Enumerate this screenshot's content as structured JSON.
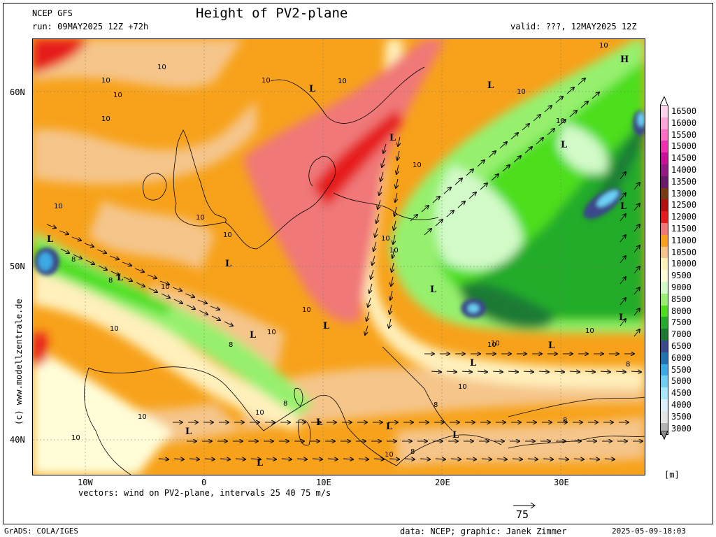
{
  "header": {
    "model": "NCEP GFS",
    "run": "run: 09MAY2025 12Z +72h",
    "title": "Height of PV2-plane",
    "valid": "valid: ???, 12MAY2025 12Z"
  },
  "axes": {
    "lat_ticks": [
      "60N",
      "50N",
      "40N"
    ],
    "lon_ticks": [
      "10W",
      "0",
      "10E",
      "20E",
      "30E"
    ]
  },
  "map_labels": {
    "lows": [
      "L",
      "L",
      "L",
      "L",
      "L",
      "L",
      "L",
      "L",
      "L",
      "L",
      "L",
      "L",
      "L",
      "L",
      "L",
      "L",
      "L"
    ],
    "high": "H",
    "contours": [
      "10",
      "10",
      "10",
      "10",
      "10",
      "10",
      "10",
      "10",
      "10",
      "10",
      "10",
      "10",
      "10",
      "10",
      "10",
      "10",
      "10",
      "10",
      "10",
      "10",
      "10",
      "8",
      "8",
      "8",
      "8",
      "8",
      "8",
      "8",
      "8"
    ]
  },
  "legend": {
    "unit": "[m]",
    "levels": [
      {
        "label": "16500",
        "color": "#ffd3ec"
      },
      {
        "label": "16000",
        "color": "#ffa5d8"
      },
      {
        "label": "15500",
        "color": "#ff6fc4"
      },
      {
        "label": "15000",
        "color": "#f030b0"
      },
      {
        "label": "14500",
        "color": "#c8109a"
      },
      {
        "label": "14000",
        "color": "#961a86"
      },
      {
        "label": "13500",
        "color": "#6c1a6a"
      },
      {
        "label": "13000",
        "color": "#7a3a14"
      },
      {
        "label": "12500",
        "color": "#b41010"
      },
      {
        "label": "12000",
        "color": "#e61c1c"
      },
      {
        "label": "11500",
        "color": "#f07878"
      },
      {
        "label": "11000",
        "color": "#f7a21a"
      },
      {
        "label": "10500",
        "color": "#f5c58a"
      },
      {
        "label": "10000",
        "color": "#fff0bc"
      },
      {
        "label": "9500",
        "color": "#fffdd8"
      },
      {
        "label": "9000",
        "color": "#d2fac8"
      },
      {
        "label": "8500",
        "color": "#96f06e"
      },
      {
        "label": "8000",
        "color": "#4ede1c"
      },
      {
        "label": "7500",
        "color": "#22ac2a"
      },
      {
        "label": "7000",
        "color": "#1a7a34"
      },
      {
        "label": "6500",
        "color": "#3a4a8a"
      },
      {
        "label": "6000",
        "color": "#1e74b0"
      },
      {
        "label": "5500",
        "color": "#3aaae6"
      },
      {
        "label": "5000",
        "color": "#6cd0f6"
      },
      {
        "label": "4500",
        "color": "#a8e8fc"
      },
      {
        "label": "4000",
        "color": "#dcf2fa"
      },
      {
        "label": "3500",
        "color": "#e4e4e4"
      },
      {
        "label": "3000",
        "color": "#b4b4b4"
      }
    ]
  },
  "footer": {
    "vectors": "vectors: wind on PV2-plane, intervals 25 40 75 m/s",
    "ref_vector": "75",
    "grads": "GrADS: COLA/IGES",
    "credit": "data: NCEP; graphic: Janek Zimmer",
    "timestamp": "2025-05-09-18:03",
    "watermark": "(c) www.modellzentrale.de"
  }
}
